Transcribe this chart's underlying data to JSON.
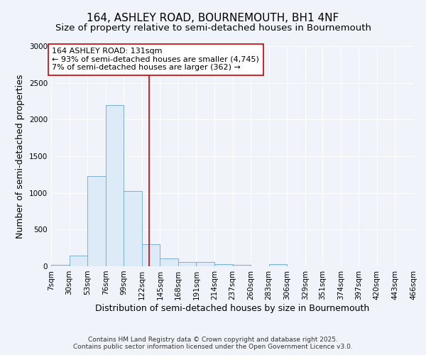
{
  "title": "164, ASHLEY ROAD, BOURNEMOUTH, BH1 4NF",
  "subtitle": "Size of property relative to semi-detached houses in Bournemouth",
  "xlabel": "Distribution of semi-detached houses by size in Bournemouth",
  "ylabel": "Number of semi-detached properties",
  "bin_edges": [
    7,
    30,
    53,
    76,
    99,
    122,
    145,
    168,
    191,
    214,
    237,
    260,
    283,
    306,
    329,
    351,
    374,
    397,
    420,
    443,
    466
  ],
  "bar_heights": [
    20,
    150,
    1230,
    2200,
    1030,
    300,
    110,
    55,
    55,
    30,
    20,
    0,
    30,
    0,
    0,
    0,
    0,
    0,
    0,
    0
  ],
  "bar_color": "#ddeaf7",
  "bar_edge_color": "#7ab0d8",
  "property_size": 131,
  "vline_color": "#cc0000",
  "annotation_text": "164 ASHLEY ROAD: 131sqm\n← 93% of semi-detached houses are smaller (4,745)\n7% of semi-detached houses are larger (362) →",
  "annotation_box_color": "#ffffff",
  "annotation_box_edge": "#cc0000",
  "ylim": [
    0,
    3000
  ],
  "yticks": [
    0,
    500,
    1000,
    1500,
    2000,
    2500,
    3000
  ],
  "background_color": "#f0f3f9",
  "grid_color": "#ffffff",
  "footer_line1": "Contains HM Land Registry data © Crown copyright and database right 2025.",
  "footer_line2": "Contains public sector information licensed under the Open Government Licence v3.0.",
  "title_fontsize": 11,
  "subtitle_fontsize": 9.5,
  "axis_label_fontsize": 9,
  "tick_fontsize": 7.5,
  "annotation_fontsize": 8
}
